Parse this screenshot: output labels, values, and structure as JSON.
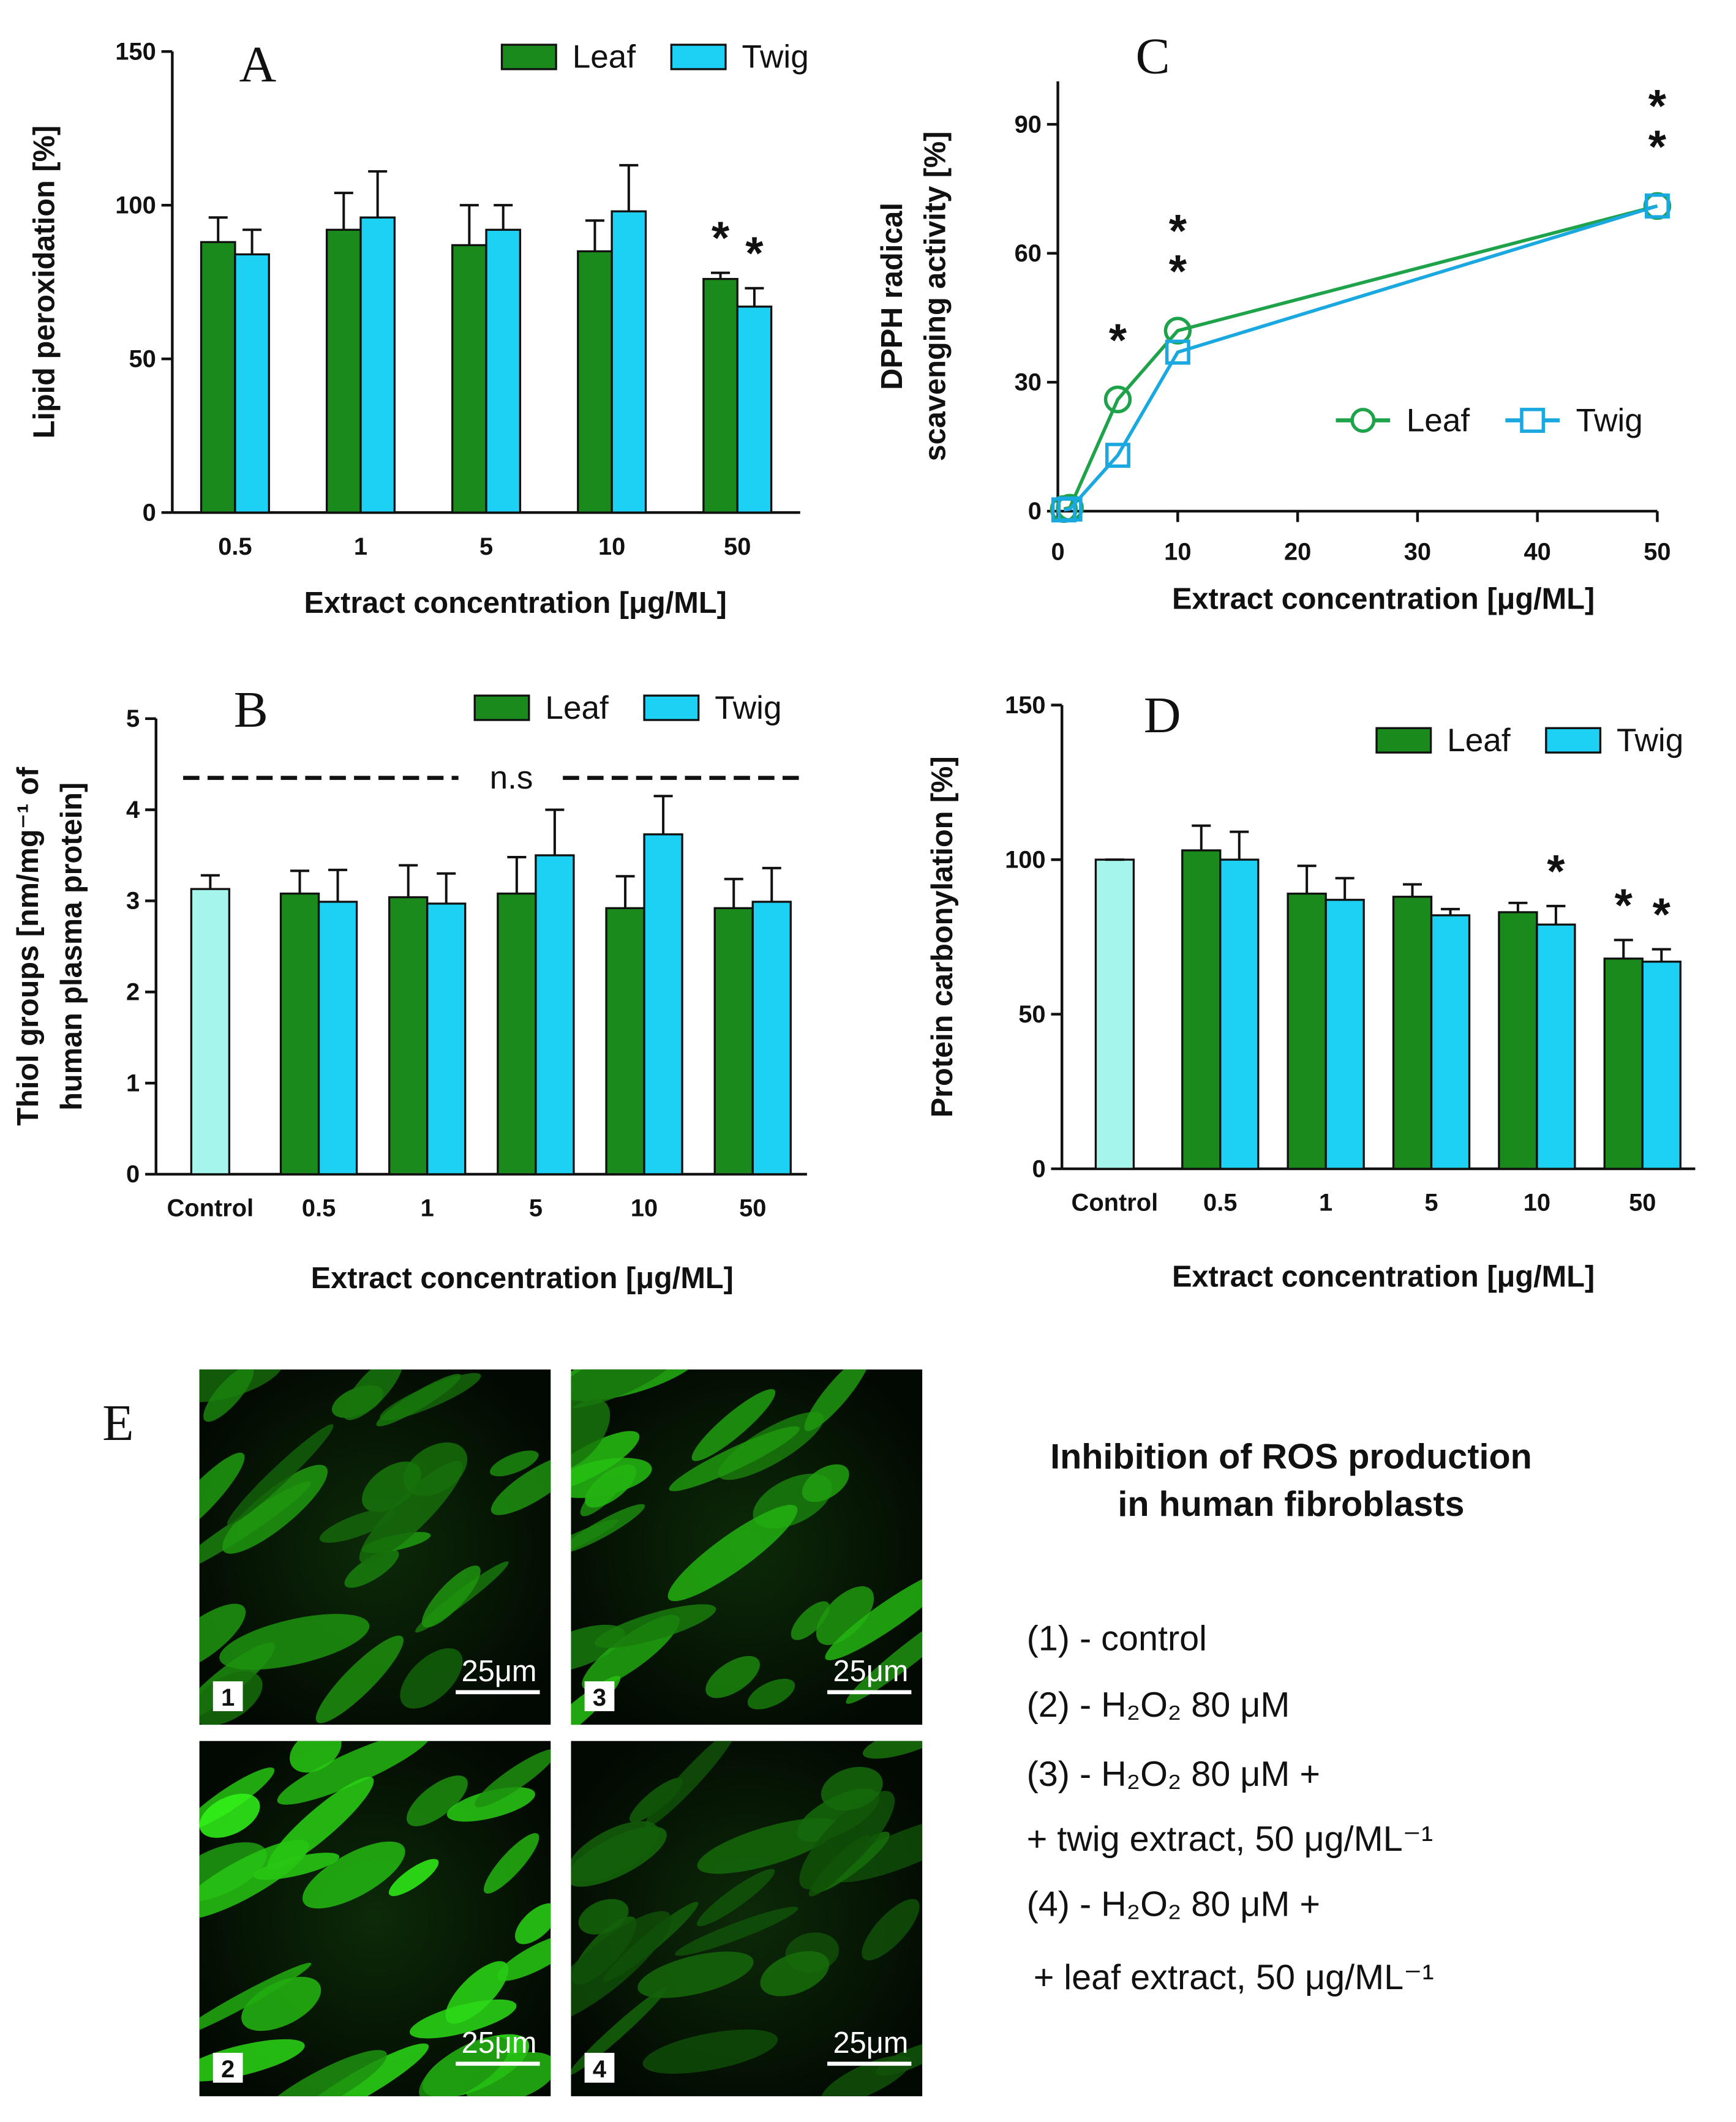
{
  "chart_data": [
    {
      "type": "bar",
      "panel": "A",
      "categories": [
        "0.5",
        "1",
        "5",
        "10",
        "50"
      ],
      "series": [
        {
          "name": "Leaf",
          "color": "#1a8a1c",
          "values": [
            88,
            92,
            87,
            85,
            76
          ],
          "errors": [
            8,
            12,
            13,
            10,
            2
          ]
        },
        {
          "name": "Twig",
          "color": "#1dd1f5",
          "values": [
            84,
            96,
            92,
            98,
            67
          ],
          "errors": [
            8,
            15,
            8,
            15,
            6
          ]
        }
      ],
      "ylim": [
        0,
        150
      ],
      "yticks": [
        0,
        50,
        100,
        150
      ],
      "y_label": [
        "Lipid peroxidation [%]"
      ],
      "x_label": "Extract concentration [μg/ML]",
      "annotations": [
        {
          "text": "*",
          "series": "Leaf",
          "category": "50"
        },
        {
          "text": "*",
          "series": "Twig",
          "category": "50"
        }
      ]
    },
    {
      "type": "bar",
      "panel": "B",
      "categories": [
        "Control",
        "0.5",
        "1",
        "5",
        "10",
        "50"
      ],
      "control": {
        "value": 3.13,
        "error": 0.15,
        "color": "#a6f5ec"
      },
      "series": [
        {
          "name": "Leaf",
          "color": "#1a8a1c",
          "values": [
            null,
            3.08,
            3.04,
            3.08,
            2.92,
            2.92
          ],
          "errors": [
            null,
            0.25,
            0.35,
            0.4,
            0.35,
            0.32
          ]
        },
        {
          "name": "Twig",
          "color": "#1dd1f5",
          "values": [
            null,
            2.99,
            2.97,
            3.5,
            3.73,
            2.99
          ],
          "errors": [
            null,
            0.35,
            0.33,
            0.5,
            0.42,
            0.37
          ]
        }
      ],
      "ylim": [
        0,
        5
      ],
      "yticks": [
        0,
        1,
        2,
        3,
        4,
        5
      ],
      "y_label": [
        "Thiol groups [nm/mg⁻¹ of",
        "human plasma protein]"
      ],
      "x_label": "Extract concentration [μg/ML]",
      "note": "n.s",
      "annotations": []
    },
    {
      "type": "line",
      "panel": "C",
      "x": [
        0.5,
        1,
        5,
        10,
        50
      ],
      "series": [
        {
          "name": "Leaf",
          "color": "#1fa34a",
          "marker": "circle",
          "values": [
            0.5,
            0.8,
            26,
            42,
            71
          ]
        },
        {
          "name": "Twig",
          "color": "#1aa8e0",
          "marker": "square",
          "values": [
            0.3,
            0.5,
            13,
            37,
            71
          ]
        }
      ],
      "xlim": [
        0,
        50
      ],
      "xticks": [
        0,
        10,
        20,
        30,
        40,
        50
      ],
      "ylim": [
        0,
        100
      ],
      "yticks": [
        0,
        30,
        60,
        90
      ],
      "y_label": [
        "DPPH radical",
        "scavenging activity [%]"
      ],
      "x_label": "Extract concentration [μg/ML]",
      "annotations": [
        {
          "text": "*",
          "series": "Leaf",
          "x": 5
        },
        {
          "text": "*",
          "series": "Leaf",
          "x": 10
        },
        {
          "text": "*",
          "series": "Leaf",
          "x": 10
        },
        {
          "text": "*",
          "series": "Leaf",
          "x": 50
        },
        {
          "text": "*",
          "series": "Leaf",
          "x": 50
        }
      ]
    },
    {
      "type": "bar",
      "panel": "D",
      "categories": [
        "Control",
        "0.5",
        "1",
        "5",
        "10",
        "50"
      ],
      "control": {
        "value": 100,
        "error": 0,
        "color": "#a6f5ec"
      },
      "series": [
        {
          "name": "Leaf",
          "color": "#1a8a1c",
          "values": [
            null,
            103,
            89,
            88,
            83,
            68
          ],
          "errors": [
            null,
            8,
            9,
            4,
            3,
            6
          ]
        },
        {
          "name": "Twig",
          "color": "#1dd1f5",
          "values": [
            null,
            100,
            87,
            82,
            79,
            67
          ],
          "errors": [
            null,
            9,
            7,
            2,
            6,
            4
          ]
        }
      ],
      "ylim": [
        0,
        150
      ],
      "yticks": [
        0,
        50,
        100,
        150
      ],
      "y_label": [
        "Protein carbonylation [%]"
      ],
      "x_label": "Extract concentration [μg/ML]",
      "annotations": [
        {
          "text": "*",
          "series": "Twig",
          "category": "10"
        },
        {
          "text": "*",
          "series": "Leaf",
          "category": "50"
        },
        {
          "text": "*",
          "series": "Twig",
          "category": "50"
        }
      ]
    }
  ],
  "panel_e": {
    "label": "E",
    "images": [
      {
        "number": "1",
        "scale": "25μm"
      },
      {
        "number": "2",
        "scale": "25μm"
      },
      {
        "number": "3",
        "scale": "25μm"
      },
      {
        "number": "4",
        "scale": "25μm"
      }
    ],
    "title": [
      "Inhibition of ROS production",
      "in human fibroblasts"
    ],
    "legend": [
      "(1) -  control",
      "(2) -  H₂O₂ 80 μM",
      "(3) -  H₂O₂ 80 μM +",
      "+ twig extract, 50 μg/ML⁻¹",
      "(4) -  H₂O₂ 80 μM +",
      "+ leaf extract, 50 μg/ML⁻¹"
    ]
  }
}
